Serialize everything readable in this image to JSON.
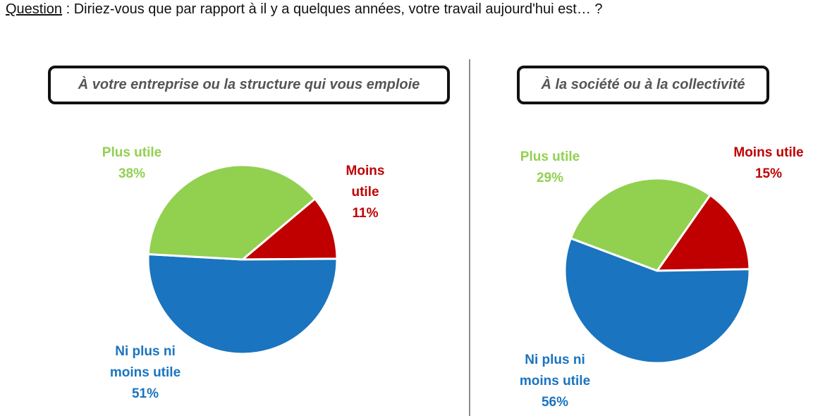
{
  "question": {
    "label": "Question",
    "text": " : Diriez-vous que par rapport à il y a quelques années, votre travail aujourd'hui est… ?"
  },
  "colors": {
    "plus_utile": "#92d050",
    "moins_utile": "#c00000",
    "neutre": "#1a74bf"
  },
  "chart_data": [
    {
      "type": "pie",
      "title": "À votre entreprise ou la structure qui vous emploie",
      "slices": [
        {
          "key": "moins",
          "label_lines": [
            "Moins",
            "utile"
          ],
          "value": 11,
          "value_label": "11%",
          "color": "#c00000"
        },
        {
          "key": "neutre",
          "label_lines": [
            "Ni plus ni",
            "moins utile"
          ],
          "value": 51,
          "value_label": "51%",
          "color": "#1a74bf"
        },
        {
          "key": "plus",
          "label_lines": [
            "Plus utile"
          ],
          "value": 38,
          "value_label": "38%",
          "color": "#92d050"
        }
      ]
    },
    {
      "type": "pie",
      "title": "À la société ou à la collectivité",
      "slices": [
        {
          "key": "moins",
          "label_lines": [
            "Moins utile"
          ],
          "value": 15,
          "value_label": "15%",
          "color": "#c00000"
        },
        {
          "key": "neutre",
          "label_lines": [
            "Ni plus ni",
            "moins utile"
          ],
          "value": 56,
          "value_label": "56%",
          "color": "#1a74bf"
        },
        {
          "key": "plus",
          "label_lines": [
            "Plus utile"
          ],
          "value": 29,
          "value_label": "29%",
          "color": "#92d050"
        }
      ]
    }
  ]
}
